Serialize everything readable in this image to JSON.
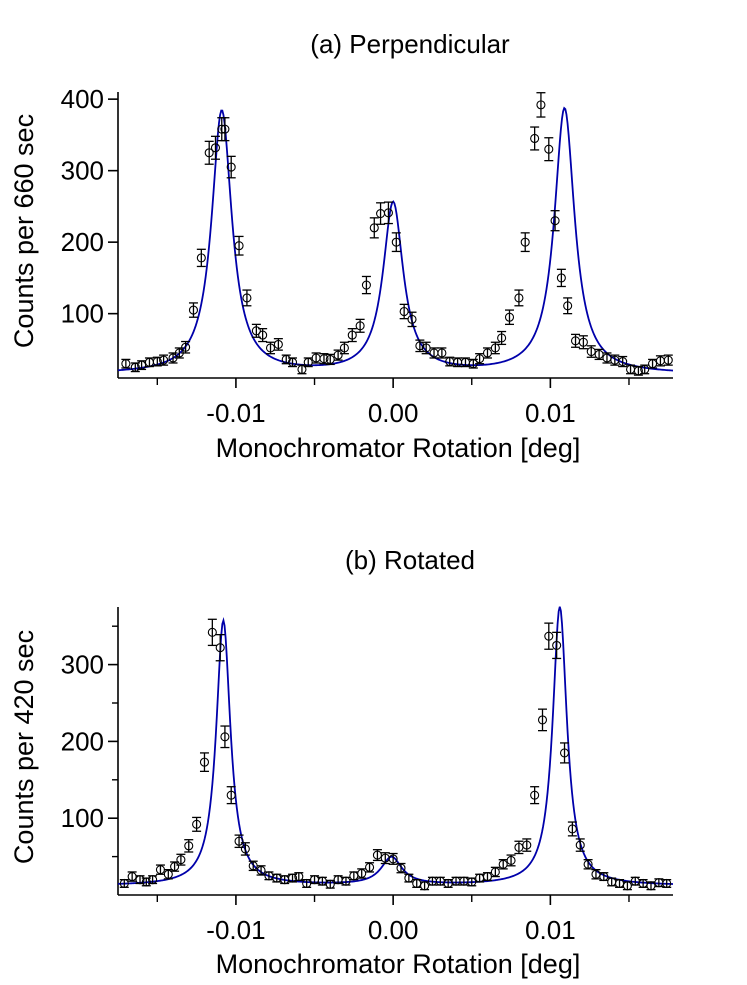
{
  "chart_data": [
    {
      "id": "a",
      "type": "scatter",
      "title": "(a) Perpendicular",
      "xlabel": "Monochromator Rotation [deg]",
      "ylabel": "Counts per 660 sec",
      "xlim": [
        -0.0175,
        0.0178
      ],
      "ylim": [
        10,
        410
      ],
      "xticks": [
        {
          "v": -0.01,
          "label": "-0.01"
        },
        {
          "v": 0.0,
          "label": "0.00"
        },
        {
          "v": 0.01,
          "label": "0.01"
        }
      ],
      "yticks": [
        {
          "v": 100,
          "label": "100"
        },
        {
          "v": 200,
          "label": "200"
        },
        {
          "v": 300,
          "label": "300"
        },
        {
          "v": 400,
          "label": "400"
        }
      ],
      "x_minor_ticks": [
        -0.015,
        -0.005,
        0.005,
        0.015
      ],
      "series": [
        {
          "name": "data",
          "style": "open-circle-with-error-bars",
          "x": [
            -0.017,
            -0.0164,
            -0.016,
            -0.0155,
            -0.015,
            -0.0146,
            -0.014,
            -0.0136,
            -0.0132,
            -0.0127,
            -0.0122,
            -0.0117,
            -0.0113,
            -0.0109,
            -0.0107,
            -0.0103,
            -0.0098,
            -0.0093,
            -0.0087,
            -0.0083,
            -0.0078,
            -0.0073,
            -0.0068,
            -0.0064,
            -0.0058,
            -0.0054,
            -0.0049,
            -0.0044,
            -0.004,
            -0.0035,
            -0.0031,
            -0.0026,
            -0.0021,
            -0.0017,
            -0.0012,
            -0.0008,
            -0.0003,
            0.0002,
            0.0007,
            0.0012,
            0.0017,
            0.0021,
            0.0026,
            0.0031,
            0.0036,
            0.0041,
            0.0046,
            0.0051,
            0.0055,
            0.006,
            0.0065,
            0.0069,
            0.0074,
            0.008,
            0.0084,
            0.009,
            0.0094,
            0.0099,
            0.0103,
            0.0107,
            0.0111,
            0.0116,
            0.0121,
            0.0126,
            0.0131,
            0.0136,
            0.0141,
            0.0146,
            0.0151,
            0.0156,
            0.016,
            0.0165,
            0.017,
            0.0175
          ],
          "y": [
            30,
            25,
            28,
            32,
            33,
            35,
            38,
            45,
            53,
            105,
            178,
            325,
            332,
            358,
            358,
            305,
            195,
            122,
            76,
            70,
            52,
            57,
            36,
            32,
            22,
            32,
            38,
            37,
            36,
            42,
            52,
            70,
            83,
            140,
            220,
            240,
            241,
            200,
            103,
            92,
            55,
            52,
            45,
            45,
            33,
            32,
            32,
            30,
            37,
            45,
            52,
            66,
            95,
            122,
            200,
            345,
            392,
            330,
            230,
            150,
            111,
            62,
            60,
            47,
            43,
            38,
            35,
            33,
            22,
            20,
            22,
            30,
            34,
            35
          ],
          "err": [
            6,
            6,
            6,
            6,
            6,
            7,
            7,
            7,
            8,
            10,
            12,
            16,
            16,
            16,
            16,
            15,
            13,
            11,
            9,
            9,
            8,
            8,
            6,
            6,
            6,
            6,
            7,
            7,
            7,
            7,
            8,
            9,
            9,
            12,
            14,
            15,
            15,
            13,
            10,
            10,
            8,
            8,
            7,
            7,
            6,
            6,
            6,
            6,
            7,
            7,
            8,
            9,
            10,
            11,
            13,
            16,
            17,
            16,
            14,
            12,
            11,
            9,
            9,
            8,
            7,
            7,
            7,
            7,
            6,
            6,
            6,
            6,
            7,
            7
          ]
        },
        {
          "name": "fit",
          "style": "line",
          "color": "#0000aa",
          "peaks": [
            {
              "center": -0.0109,
              "height": 368,
              "hwhm": 0.00078
            },
            {
              "center": 0.0,
              "height": 238,
              "hwhm": 0.00078
            },
            {
              "center": 0.0109,
              "height": 371,
              "hwhm": 0.00078
            }
          ],
          "baseline": 15
        }
      ]
    },
    {
      "id": "b",
      "type": "scatter",
      "title": "(b) Rotated",
      "xlabel": "Monochromator Rotation [deg]",
      "ylabel": "Counts per 420 sec",
      "xlim": [
        -0.0175,
        0.0178
      ],
      "ylim": [
        0,
        375
      ],
      "xticks": [
        {
          "v": -0.01,
          "label": "-0.01"
        },
        {
          "v": 0.0,
          "label": "0.00"
        },
        {
          "v": 0.01,
          "label": "0.01"
        }
      ],
      "yticks": [
        {
          "v": 100,
          "label": "100"
        },
        {
          "v": 200,
          "label": "200"
        },
        {
          "v": 300,
          "label": "300"
        }
      ],
      "x_minor_ticks": [
        -0.015,
        -0.005,
        0.005,
        0.015
      ],
      "y_minor_ticks": [
        50,
        150,
        250,
        350
      ],
      "series": [
        {
          "name": "data",
          "style": "open-circle-with-error-bars",
          "x": [
            -0.0171,
            -0.0166,
            -0.0161,
            -0.0157,
            -0.0153,
            -0.0148,
            -0.0143,
            -0.0139,
            -0.0135,
            -0.013,
            -0.0125,
            -0.012,
            -0.0115,
            -0.011,
            -0.0107,
            -0.0103,
            -0.0098,
            -0.0094,
            -0.0089,
            -0.0084,
            -0.0079,
            -0.0074,
            -0.0069,
            -0.0064,
            -0.006,
            -0.0055,
            -0.005,
            -0.0045,
            -0.004,
            -0.0035,
            -0.003,
            -0.0025,
            -0.002,
            -0.0015,
            -0.001,
            -0.0005,
            0.0,
            0.0005,
            0.001,
            0.0015,
            0.002,
            0.0025,
            0.003,
            0.0035,
            0.004,
            0.0045,
            0.005,
            0.0055,
            0.006,
            0.0065,
            0.007,
            0.0075,
            0.008,
            0.0085,
            0.009,
            0.0095,
            0.0099,
            0.0104,
            0.0109,
            0.0114,
            0.0119,
            0.0124,
            0.0129,
            0.0134,
            0.0139,
            0.0144,
            0.0149,
            0.0154,
            0.0159,
            0.0164,
            0.0169,
            0.0174
          ],
          "y": [
            15,
            24,
            20,
            17,
            20,
            33,
            27,
            37,
            46,
            64,
            92,
            173,
            342,
            322,
            206,
            130,
            70,
            60,
            38,
            32,
            25,
            22,
            20,
            22,
            24,
            15,
            20,
            18,
            14,
            20,
            18,
            25,
            28,
            36,
            52,
            48,
            47,
            35,
            22,
            15,
            12,
            18,
            18,
            15,
            18,
            18,
            17,
            22,
            24,
            30,
            40,
            45,
            62,
            65,
            130,
            228,
            337,
            325,
            185,
            86,
            65,
            40,
            27,
            24,
            17,
            15,
            12,
            18,
            15,
            12,
            16,
            15
          ],
          "err": [
            5,
            6,
            5,
            5,
            5,
            6,
            6,
            6,
            7,
            8,
            9,
            12,
            17,
            17,
            14,
            11,
            8,
            8,
            6,
            6,
            5,
            5,
            5,
            5,
            5,
            5,
            5,
            5,
            5,
            5,
            5,
            5,
            6,
            6,
            7,
            7,
            7,
            6,
            5,
            5,
            5,
            5,
            5,
            5,
            5,
            5,
            5,
            5,
            5,
            6,
            6,
            7,
            8,
            8,
            11,
            14,
            17,
            17,
            13,
            9,
            8,
            6,
            6,
            5,
            5,
            5,
            5,
            5,
            5,
            5,
            5,
            5
          ]
        },
        {
          "name": "fit",
          "style": "line",
          "color": "#0000aa",
          "peaks": [
            {
              "center": -0.0108,
              "height": 345,
              "hwhm": 0.00055
            },
            {
              "center": -0.0001,
              "height": 36,
              "hwhm": 0.0008
            },
            {
              "center": 0.0106,
              "height": 363,
              "hwhm": 0.00055
            }
          ],
          "baseline": 12
        }
      ]
    }
  ]
}
